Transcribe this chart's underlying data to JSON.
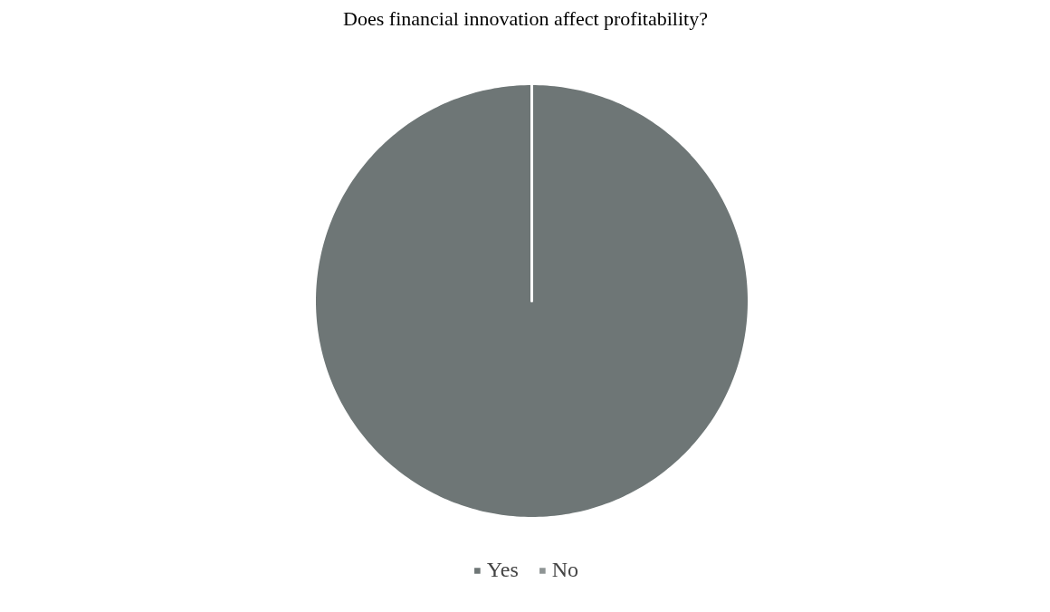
{
  "chart_data": {
    "type": "pie",
    "title": "Does financial innovation affect profitability?",
    "categories": [
      "Yes",
      "No"
    ],
    "values": [
      100,
      0
    ],
    "colors": [
      "#6e7676",
      "#8e9494"
    ],
    "legend": "bottom"
  }
}
